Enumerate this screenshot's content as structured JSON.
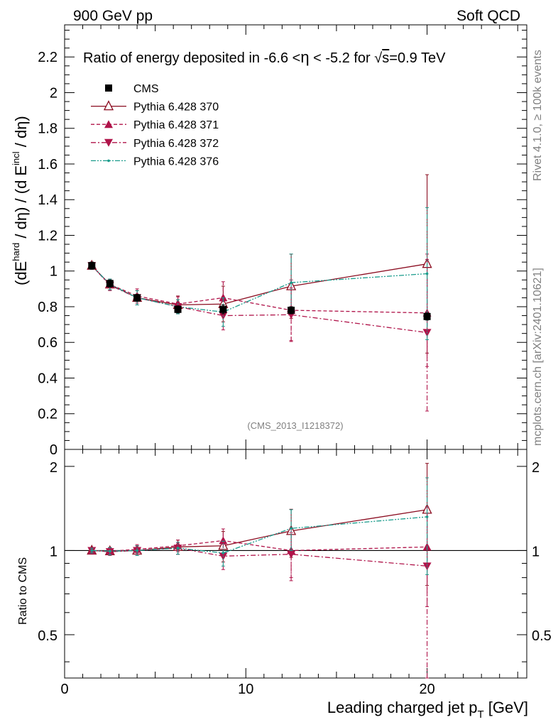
{
  "header": {
    "left": "900 GeV pp",
    "right": "Soft QCD"
  },
  "side_labels": {
    "rivet": "Rivet 4.1.0, ≥ 100k events",
    "mcplots": "mcplots.cern.ch [arXiv:2401.10621]"
  },
  "chart_data": {
    "type": "scatter",
    "title": "Ratio of energy deposited in -6.6 <η < -5.2 for √s=0.9 TeV",
    "title_prefix": "Ratio of energy deposited in -6.6 <",
    "title_eta": "η",
    "title_mid": " < -5.2 for ",
    "title_sqrt": "√",
    "title_s": "s",
    "title_suffix": "=0.9 TeV",
    "watermark": "(CMS_2013_I1218372)",
    "xlabel": "Leading charged jet p",
    "xlabel_sub": "T",
    "xlabel_unit": " [GeV]",
    "ylabel": {
      "p1": "(dE",
      "sup1": "hard",
      "p2": " / dη) / (d E",
      "sup2": "incl",
      "p3": " / dη)"
    },
    "ratio_ylabel": "Ratio to CMS",
    "xlim": [
      0,
      25.5
    ],
    "ylim": [
      0,
      2.38
    ],
    "ratio_ylim": [
      0.35,
      2.3
    ],
    "ratio_log": true,
    "x_ticks": [
      0,
      10,
      20
    ],
    "y_ticks": [
      0,
      0.2,
      0.4,
      0.6,
      0.8,
      1,
      1.2,
      1.4,
      1.6,
      1.8,
      2,
      2.2
    ],
    "ratio_ticks": [
      0.5,
      1,
      2
    ],
    "ratio_tick_labels": [
      "0.5",
      "1",
      "2"
    ],
    "legend_position": "top-left",
    "x": [
      1.5,
      2.5,
      4.0,
      6.25,
      8.75,
      12.5,
      20.0
    ],
    "series": [
      {
        "name": "CMS",
        "color": "#000000",
        "marker": "square",
        "line": "none",
        "values": [
          1.03,
          0.93,
          0.85,
          0.785,
          0.785,
          0.78,
          0.745
        ],
        "errors": [
          0.02,
          0.02,
          0.02,
          0.02,
          0.025,
          0.02,
          0.02
        ]
      },
      {
        "name": "Pythia 6.428 370",
        "color": "#8b0c20",
        "marker": "triangle-up-open",
        "line": "solid",
        "values": [
          1.03,
          0.925,
          0.85,
          0.81,
          0.815,
          0.915,
          1.04
        ],
        "errors": [
          0.02,
          0.03,
          0.04,
          0.05,
          0.1,
          0.18,
          0.5
        ],
        "ratio": [
          1.0,
          0.995,
          1.0,
          1.03,
          1.04,
          1.175,
          1.4
        ],
        "ratio_errors": [
          0.02,
          0.03,
          0.04,
          0.06,
          0.13,
          0.23,
          0.65
        ]
      },
      {
        "name": "Pythia 6.428 371",
        "color": "#b0144a",
        "marker": "triangle-up",
        "line": "dashed",
        "values": [
          1.03,
          0.925,
          0.86,
          0.815,
          0.85,
          0.78,
          0.765
        ],
        "errors": [
          0.02,
          0.03,
          0.04,
          0.04,
          0.09,
          0.17,
          0.3
        ],
        "ratio": [
          1.0,
          0.995,
          1.01,
          1.04,
          1.085,
          1.0,
          1.03
        ],
        "ratio_errors": [
          0.02,
          0.03,
          0.04,
          0.05,
          0.11,
          0.2,
          0.4
        ]
      },
      {
        "name": "Pythia 6.428 372",
        "color": "#b0144a",
        "marker": "triangle-down",
        "line": "dashdot",
        "values": [
          1.03,
          0.92,
          0.85,
          0.8,
          0.75,
          0.755,
          0.655
        ],
        "errors": [
          0.02,
          0.03,
          0.04,
          0.04,
          0.08,
          0.15,
          0.44
        ],
        "ratio": [
          1.0,
          0.99,
          1.0,
          1.02,
          0.955,
          0.97,
          0.88
        ],
        "ratio_errors": [
          0.02,
          0.03,
          0.04,
          0.05,
          0.1,
          0.19,
          0.55
        ]
      },
      {
        "name": "Pythia 6.428 376",
        "color": "#1a9c8c",
        "marker": "dot",
        "line": "dashdotdot",
        "values": [
          1.03,
          0.925,
          0.85,
          0.8,
          0.77,
          0.935,
          0.985
        ],
        "errors": [
          0.02,
          0.03,
          0.04,
          0.04,
          0.08,
          0.16,
          0.37
        ],
        "ratio": [
          1.0,
          0.995,
          1.0,
          1.02,
          0.98,
          1.2,
          1.32
        ],
        "ratio_errors": [
          0.02,
          0.03,
          0.04,
          0.05,
          0.1,
          0.2,
          0.5
        ]
      }
    ]
  }
}
